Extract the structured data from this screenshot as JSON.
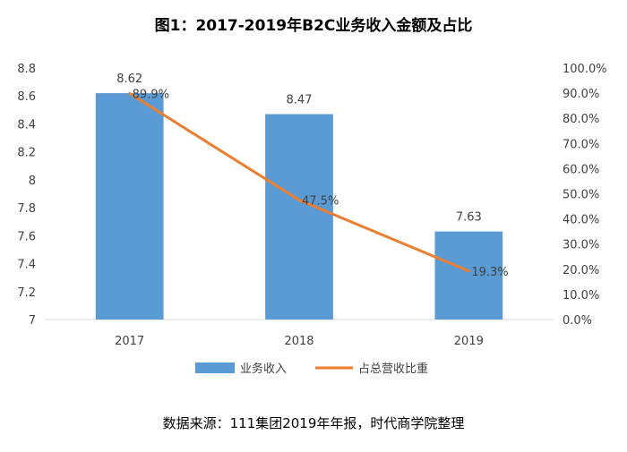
{
  "chart_data": {
    "type": "bar",
    "title": "图1：2017-2019年B2C业务收入金额及占比",
    "categories": [
      "2017",
      "2018",
      "2019"
    ],
    "series": [
      {
        "name": "业务收入",
        "type": "bar",
        "axis": "left",
        "color": "#5b9bd5",
        "values": [
          8.62,
          8.47,
          7.63
        ],
        "labels": [
          "8.62",
          "8.47",
          "7.63"
        ]
      },
      {
        "name": "占总营收比重",
        "type": "line",
        "axis": "right",
        "color": "#ed7d31",
        "values": [
          89.9,
          47.5,
          19.3
        ],
        "labels": [
          "89.9%",
          "47.5%",
          "19.3%"
        ]
      }
    ],
    "ylim": [
      7,
      8.8
    ],
    "yticks": [
      "7",
      "7.2",
      "7.4",
      "7.6",
      "7.8",
      "8",
      "8.2",
      "8.4",
      "8.6",
      "8.8"
    ],
    "y2lim": [
      0,
      100
    ],
    "y2ticks": [
      "0.0%",
      "10.0%",
      "20.0%",
      "30.0%",
      "40.0%",
      "50.0%",
      "60.0%",
      "70.0%",
      "80.0%",
      "90.0%",
      "100.0%"
    ],
    "grid": false,
    "legend_position": "bottom"
  },
  "footer": {
    "source": "数据来源：111集团2019年年报，时代商学院整理"
  }
}
